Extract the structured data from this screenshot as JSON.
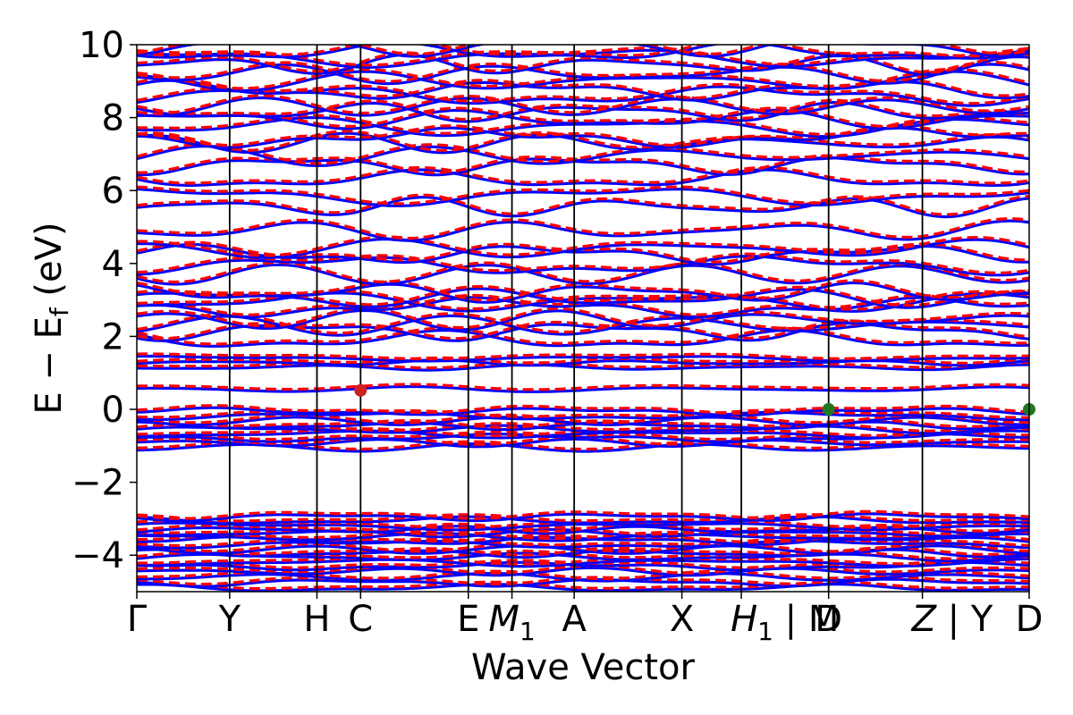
{
  "chart_data": {
    "type": "line",
    "title": "",
    "xlabel": "Wave Vector",
    "ylabel": "E − E_f (eV)",
    "ylabel_main": "E − E",
    "ylabel_sub": "f",
    "ylabel_unit": " (eV)",
    "ylim": [
      -5,
      10
    ],
    "yticks": [
      10,
      8,
      6,
      4,
      2,
      0,
      -2,
      -4
    ],
    "ytick_labels": [
      "10",
      "8",
      "6",
      "4",
      "2",
      "0",
      "−2",
      "−4"
    ],
    "kpoints": [
      {
        "label": "Γ",
        "x": 0.0
      },
      {
        "label": "Y",
        "x": 1.0
      },
      {
        "label": "H",
        "x": 1.94
      },
      {
        "label": "C",
        "x": 2.41
      },
      {
        "label": "E",
        "x": 3.57
      },
      {
        "label": "M₁",
        "main": "M",
        "sub": "1",
        "x": 4.04
      },
      {
        "label": "A",
        "x": 4.71
      },
      {
        "label": "X",
        "x": 5.87
      },
      {
        "label": "H₁ | M",
        "main": "H",
        "sub": "1",
        "tail": " | M",
        "x": 6.51
      },
      {
        "label": "D",
        "x": 7.45
      },
      {
        "label": "Z | Y",
        "main": "Z",
        "tail": " | Y",
        "x": 8.46
      },
      {
        "label": "D",
        "x": 9.61
      }
    ],
    "xlim": [
      0.0,
      9.61
    ],
    "series": [
      {
        "style": "solid",
        "color": "#0000ff"
      },
      {
        "style": "dashed",
        "color": "#ff0000"
      }
    ],
    "bands_below": [
      -4.9,
      -4.75,
      -4.6,
      -4.45,
      -4.3,
      -4.2,
      -4.05,
      -3.95,
      -3.85,
      -3.7,
      -3.6,
      -3.5,
      -3.4,
      -3.3,
      -3.2,
      -3.05,
      -2.95,
      -1.05,
      -0.92,
      -0.78,
      -0.68,
      -0.55,
      -0.45,
      -0.32,
      -0.18,
      -0.06
    ],
    "bands_gap": [
      0.55,
      1.15,
      1.28,
      1.4
    ],
    "bands_above": [
      1.9,
      2.15,
      2.3,
      2.45,
      2.8,
      2.95,
      3.05,
      3.2,
      3.7,
      3.95,
      4.25,
      4.4,
      4.9,
      5.55,
      5.85,
      6.3,
      6.7,
      6.95,
      7.3,
      7.45,
      7.75,
      7.95,
      8.15,
      8.3,
      8.6,
      8.75,
      9.0,
      9.2,
      9.45,
      9.65,
      9.8,
      9.95
    ],
    "special_points": [
      {
        "x": 2.41,
        "y": 0.52,
        "color": "#cc2222"
      },
      {
        "x": 7.45,
        "y": 0.0,
        "color": "#227722"
      },
      {
        "x": 9.61,
        "y": 0.0,
        "color": "#227722"
      }
    ]
  }
}
